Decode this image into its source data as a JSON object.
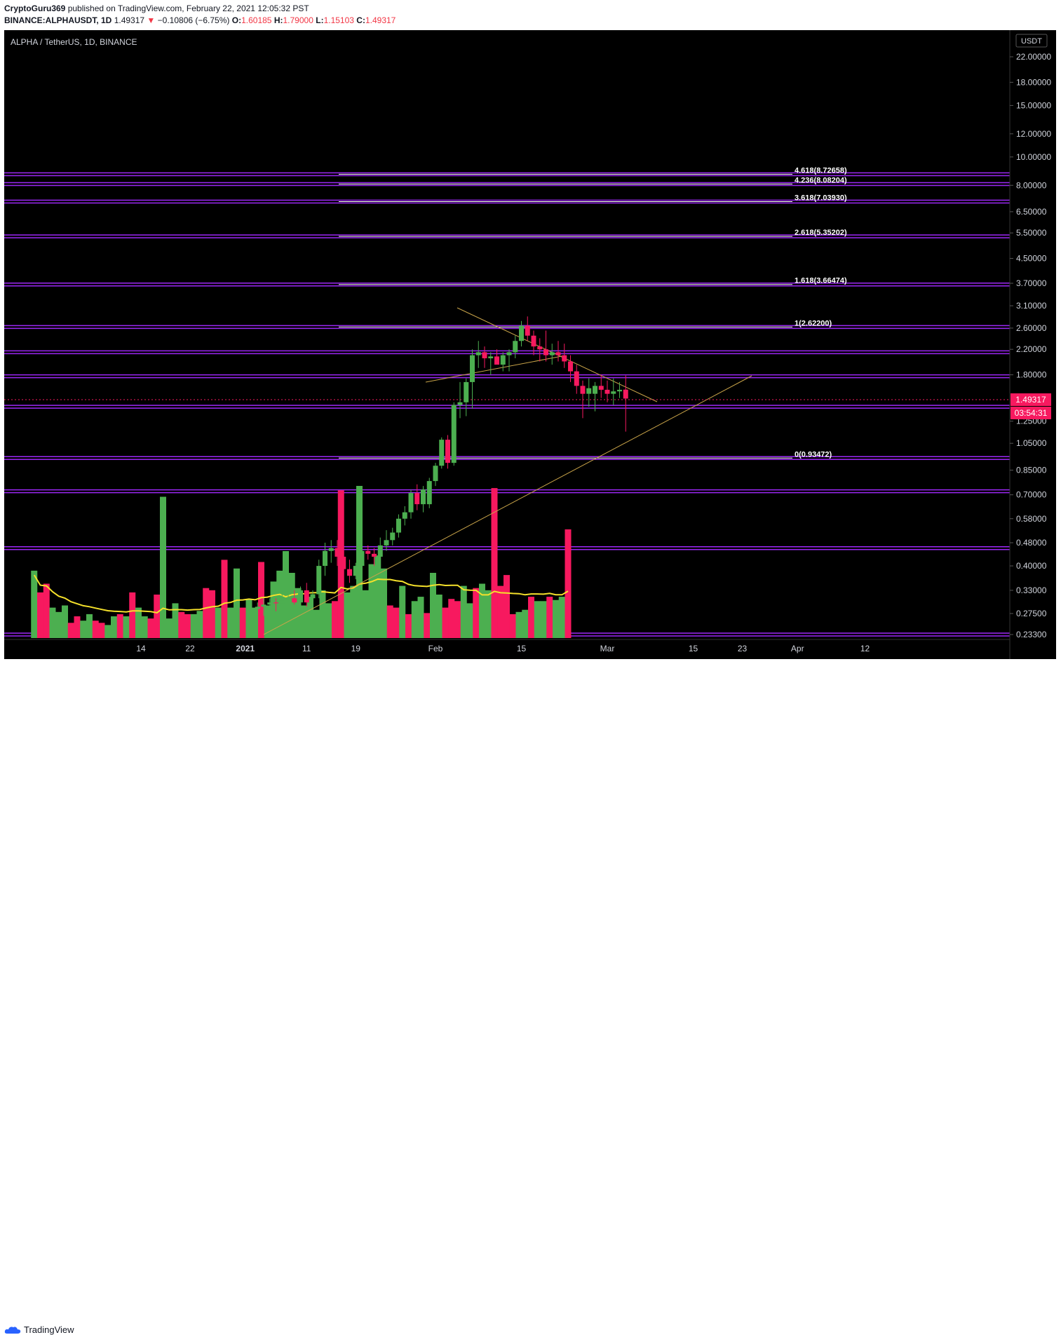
{
  "header": {
    "publisher": "CryptoGuru369",
    "published_text": "published on TradingView.com, February 22, 2021 12:05:32 PST",
    "symbol": "BINANCE:ALPHAUSDT, 1D",
    "last": "1.49317",
    "change": "−0.10806 (−6.75%)",
    "o_label": "O:",
    "o_value": "1.60185",
    "h_label": "H:",
    "h_value": "1.79000",
    "l_label": "L:",
    "l_value": "1.15103",
    "c_label": "C:",
    "c_value": "1.49317"
  },
  "chart_label": "ALPHA / TetherUS, 1D, BINANCE",
  "currency_badge": "USDT",
  "footer": {
    "brand": "TradingView"
  },
  "colors": {
    "background": "#000000",
    "up": "#4caf50",
    "down": "#f7195f",
    "fib_level": "#9c27f5",
    "trendline": "#c9a449",
    "ma": "#f5e12b",
    "price_badge": "#f7195f"
  },
  "chart_data": {
    "type": "candlestick",
    "title": "ALPHA / TetherUS, 1D, BINANCE",
    "y_scale": "log",
    "ylim": [
      0.228,
      26.0
    ],
    "y_ticks": [
      {
        "value": 22.0,
        "label": "22.00000"
      },
      {
        "value": 18.0,
        "label": "18.00000"
      },
      {
        "value": 15.0,
        "label": "15.00000"
      },
      {
        "value": 12.0,
        "label": "12.00000"
      },
      {
        "value": 10.0,
        "label": "10.00000"
      },
      {
        "value": 8.0,
        "label": "8.00000"
      },
      {
        "value": 6.5,
        "label": "6.50000"
      },
      {
        "value": 5.5,
        "label": "5.50000"
      },
      {
        "value": 4.5,
        "label": "4.50000"
      },
      {
        "value": 3.7,
        "label": "3.70000"
      },
      {
        "value": 3.1,
        "label": "3.10000"
      },
      {
        "value": 2.6,
        "label": "2.60000"
      },
      {
        "value": 2.2,
        "label": "2.20000"
      },
      {
        "value": 1.8,
        "label": "1.80000"
      },
      {
        "value": 1.25,
        "label": "1.25000"
      },
      {
        "value": 1.05,
        "label": "1.05000"
      },
      {
        "value": 0.85,
        "label": "0.85000"
      },
      {
        "value": 0.7,
        "label": "0.70000"
      },
      {
        "value": 0.58,
        "label": "0.58000"
      },
      {
        "value": 0.48,
        "label": "0.48000"
      },
      {
        "value": 0.4,
        "label": "0.40000"
      },
      {
        "value": 0.33,
        "label": "0.33000"
      },
      {
        "value": 0.275,
        "label": "0.27500"
      },
      {
        "value": 0.233,
        "label": "0.23300"
      }
    ],
    "x_ticks": [
      {
        "day": -22,
        "label": "14"
      },
      {
        "day": -14,
        "label": "22"
      },
      {
        "day": -5,
        "label": "2021"
      },
      {
        "day": 5,
        "label": "11"
      },
      {
        "day": 13,
        "label": "19"
      },
      {
        "day": 26,
        "label": "Feb"
      },
      {
        "day": 40,
        "label": "15"
      },
      {
        "day": 54,
        "label": "Mar"
      },
      {
        "day": 68,
        "label": "15"
      },
      {
        "day": 76,
        "label": "23"
      },
      {
        "day": 85,
        "label": "Apr"
      },
      {
        "day": 96,
        "label": "12"
      }
    ],
    "candles": [
      {
        "day": -3,
        "o": 0.285,
        "h": 0.3,
        "l": 0.265,
        "c": 0.29
      },
      {
        "day": -2,
        "o": 0.29,
        "h": 0.31,
        "l": 0.27,
        "c": 0.295
      },
      {
        "day": -1,
        "o": 0.295,
        "h": 0.31,
        "l": 0.275,
        "c": 0.3
      },
      {
        "day": 0,
        "o": 0.3,
        "h": 0.31,
        "l": 0.28,
        "c": 0.298
      },
      {
        "day": 1,
        "o": 0.298,
        "h": 0.32,
        "l": 0.285,
        "c": 0.305
      },
      {
        "day": 2,
        "o": 0.305,
        "h": 0.32,
        "l": 0.29,
        "c": 0.31
      },
      {
        "day": 3,
        "o": 0.31,
        "h": 0.33,
        "l": 0.295,
        "c": 0.3
      },
      {
        "day": 4,
        "o": 0.3,
        "h": 0.34,
        "l": 0.3,
        "c": 0.33
      },
      {
        "day": 5,
        "o": 0.33,
        "h": 0.35,
        "l": 0.29,
        "c": 0.3
      },
      {
        "day": 6,
        "o": 0.31,
        "h": 0.33,
        "l": 0.29,
        "c": 0.32
      },
      {
        "day": 7,
        "o": 0.32,
        "h": 0.42,
        "l": 0.31,
        "c": 0.4
      },
      {
        "day": 8,
        "o": 0.4,
        "h": 0.48,
        "l": 0.37,
        "c": 0.45
      },
      {
        "day": 9,
        "o": 0.45,
        "h": 0.49,
        "l": 0.41,
        "c": 0.46
      },
      {
        "day": 10,
        "o": 0.46,
        "h": 0.49,
        "l": 0.4,
        "c": 0.43
      },
      {
        "day": 11,
        "o": 0.43,
        "h": 0.45,
        "l": 0.36,
        "c": 0.39
      },
      {
        "day": 12,
        "o": 0.39,
        "h": 0.42,
        "l": 0.35,
        "c": 0.37
      },
      {
        "day": 13,
        "o": 0.37,
        "h": 0.41,
        "l": 0.36,
        "c": 0.4
      },
      {
        "day": 14,
        "o": 0.4,
        "h": 0.47,
        "l": 0.39,
        "c": 0.45
      },
      {
        "day": 15,
        "o": 0.45,
        "h": 0.47,
        "l": 0.42,
        "c": 0.44
      },
      {
        "day": 16,
        "o": 0.44,
        "h": 0.46,
        "l": 0.4,
        "c": 0.43
      },
      {
        "day": 17,
        "o": 0.43,
        "h": 0.5,
        "l": 0.42,
        "c": 0.47
      },
      {
        "day": 18,
        "o": 0.47,
        "h": 0.53,
        "l": 0.45,
        "c": 0.49
      },
      {
        "day": 19,
        "o": 0.49,
        "h": 0.54,
        "l": 0.47,
        "c": 0.52
      },
      {
        "day": 20,
        "o": 0.52,
        "h": 0.6,
        "l": 0.5,
        "c": 0.58
      },
      {
        "day": 21,
        "o": 0.58,
        "h": 0.64,
        "l": 0.55,
        "c": 0.61
      },
      {
        "day": 22,
        "o": 0.61,
        "h": 0.73,
        "l": 0.58,
        "c": 0.71
      },
      {
        "day": 23,
        "o": 0.71,
        "h": 0.76,
        "l": 0.62,
        "c": 0.65
      },
      {
        "day": 24,
        "o": 0.65,
        "h": 0.75,
        "l": 0.61,
        "c": 0.73
      },
      {
        "day": 25,
        "o": 0.65,
        "h": 0.8,
        "l": 0.63,
        "c": 0.78
      },
      {
        "day": 26,
        "o": 0.78,
        "h": 0.9,
        "l": 0.75,
        "c": 0.88
      },
      {
        "day": 27,
        "o": 0.88,
        "h": 1.1,
        "l": 0.86,
        "c": 1.08
      },
      {
        "day": 28,
        "o": 1.08,
        "h": 1.12,
        "l": 0.86,
        "c": 0.9
      },
      {
        "day": 29,
        "o": 0.9,
        "h": 1.45,
        "l": 0.88,
        "c": 1.42
      },
      {
        "day": 30,
        "o": 1.42,
        "h": 1.7,
        "l": 1.28,
        "c": 1.45
      },
      {
        "day": 31,
        "o": 1.45,
        "h": 1.75,
        "l": 1.3,
        "c": 1.7
      },
      {
        "day": 32,
        "o": 1.7,
        "h": 2.2,
        "l": 1.38,
        "c": 2.1
      },
      {
        "day": 33,
        "o": 2.1,
        "h": 2.35,
        "l": 1.9,
        "c": 2.15
      },
      {
        "day": 34,
        "o": 2.15,
        "h": 2.25,
        "l": 1.9,
        "c": 2.05
      },
      {
        "day": 35,
        "o": 2.05,
        "h": 2.15,
        "l": 1.8,
        "c": 2.08
      },
      {
        "day": 36,
        "o": 2.08,
        "h": 2.2,
        "l": 1.95,
        "c": 1.95
      },
      {
        "day": 37,
        "o": 1.95,
        "h": 2.15,
        "l": 1.85,
        "c": 2.1
      },
      {
        "day": 38,
        "o": 2.1,
        "h": 2.2,
        "l": 1.85,
        "c": 2.15
      },
      {
        "day": 39,
        "o": 2.15,
        "h": 2.45,
        "l": 2.05,
        "c": 2.35
      },
      {
        "day": 40,
        "o": 2.35,
        "h": 2.75,
        "l": 2.25,
        "c": 2.65
      },
      {
        "day": 41,
        "o": 2.65,
        "h": 2.85,
        "l": 2.35,
        "c": 2.45
      },
      {
        "day": 42,
        "o": 2.45,
        "h": 2.55,
        "l": 2.1,
        "c": 2.25
      },
      {
        "day": 43,
        "o": 2.25,
        "h": 2.4,
        "l": 2.0,
        "c": 2.2
      },
      {
        "day": 44,
        "o": 2.2,
        "h": 2.55,
        "l": 2.0,
        "c": 2.1
      },
      {
        "day": 45,
        "o": 2.1,
        "h": 2.3,
        "l": 1.95,
        "c": 2.15
      },
      {
        "day": 46,
        "o": 2.15,
        "h": 2.35,
        "l": 2.0,
        "c": 2.1
      },
      {
        "day": 47,
        "o": 2.1,
        "h": 2.3,
        "l": 1.9,
        "c": 2.0
      },
      {
        "day": 48,
        "o": 2.0,
        "h": 2.1,
        "l": 1.7,
        "c": 1.85
      },
      {
        "day": 49,
        "o": 1.85,
        "h": 1.95,
        "l": 1.55,
        "c": 1.65
      },
      {
        "day": 50,
        "o": 1.65,
        "h": 1.72,
        "l": 1.28,
        "c": 1.55
      },
      {
        "day": 51,
        "o": 1.55,
        "h": 1.75,
        "l": 1.4,
        "c": 1.62
      },
      {
        "day": 52,
        "o": 1.55,
        "h": 1.7,
        "l": 1.35,
        "c": 1.65
      },
      {
        "day": 53,
        "o": 1.65,
        "h": 1.8,
        "l": 1.5,
        "c": 1.6
      },
      {
        "day": 54,
        "o": 1.6,
        "h": 1.72,
        "l": 1.45,
        "c": 1.55
      },
      {
        "day": 55,
        "o": 1.55,
        "h": 1.75,
        "l": 1.42,
        "c": 1.58
      },
      {
        "day": 56,
        "o": 1.58,
        "h": 1.7,
        "l": 1.5,
        "c": 1.6
      },
      {
        "day": 57,
        "o": 1.60185,
        "h": 1.79,
        "l": 1.15103,
        "c": 1.49317
      }
    ],
    "volume_overlay": {
      "max_volume_day": 7
    },
    "fib_levels": [
      {
        "ratio": "4.618",
        "value": 8.72658,
        "label": "4.618(8.72658)"
      },
      {
        "ratio": "4.236",
        "value": 8.08204,
        "label": "4.236(8.08204)"
      },
      {
        "ratio": "3.618",
        "value": 7.0393,
        "label": "3.618(7.03930)"
      },
      {
        "ratio": "2.618",
        "value": 5.35202,
        "label": "2.618(5.35202)"
      },
      {
        "ratio": "1.618",
        "value": 3.66474,
        "label": "1.618(3.66474)"
      },
      {
        "ratio": "1",
        "value": 2.622,
        "label": "1(2.62200)"
      },
      {
        "ratio": "0",
        "value": 0.93472,
        "label": "0(0.93472)"
      }
    ],
    "current_price": {
      "value": 1.49317,
      "label": "1.49317",
      "countdown": "03:54:31"
    }
  }
}
